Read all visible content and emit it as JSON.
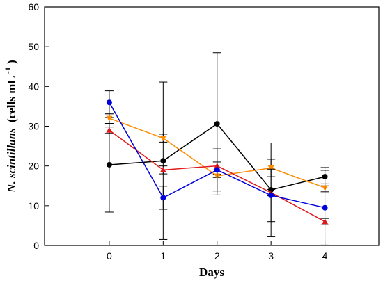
{
  "chart_data": {
    "type": "line",
    "xlabel": "Days",
    "ylabel": {
      "species": "N. scintillans",
      "unit_prefix": "(cells mL",
      "unit_exp": "-1",
      "unit_suffix": ")"
    },
    "xlim": [
      -1.2,
      5
    ],
    "ylim": [
      0,
      60
    ],
    "x_ticks": [
      0,
      1,
      2,
      3,
      4
    ],
    "y_ticks": [
      0,
      10,
      20,
      30,
      40,
      50,
      60
    ],
    "grid": false,
    "legend": "none",
    "x": [
      0,
      1,
      2,
      3,
      4
    ],
    "series": [
      {
        "color": "#000000",
        "marker": "circle",
        "values": [
          20.3,
          21.3,
          30.6,
          14.0,
          17.3
        ],
        "errors": [
          11.9,
          19.8,
          17.9,
          11.8,
          2.3
        ]
      },
      {
        "color": "#ff8c00",
        "marker": "triangle-down",
        "values": [
          32.0,
          27.0,
          17.5,
          19.5,
          14.5
        ],
        "errors": [
          1.3,
          1.0,
          0.4,
          2.2,
          1.0
        ]
      },
      {
        "color": "#e31a1c",
        "marker": "triangle-up",
        "values": [
          29.0,
          19.0,
          20.0,
          13.3,
          6.0
        ],
        "errors": [
          0.8,
          1.0,
          1.0,
          0.8,
          0.8
        ]
      },
      {
        "color": "#0000dd",
        "marker": "circle",
        "values": [
          36.0,
          12.0,
          19.0,
          12.6,
          9.5
        ],
        "errors": [
          2.9,
          2.9,
          5.3,
          6.6,
          9.4
        ]
      }
    ]
  }
}
